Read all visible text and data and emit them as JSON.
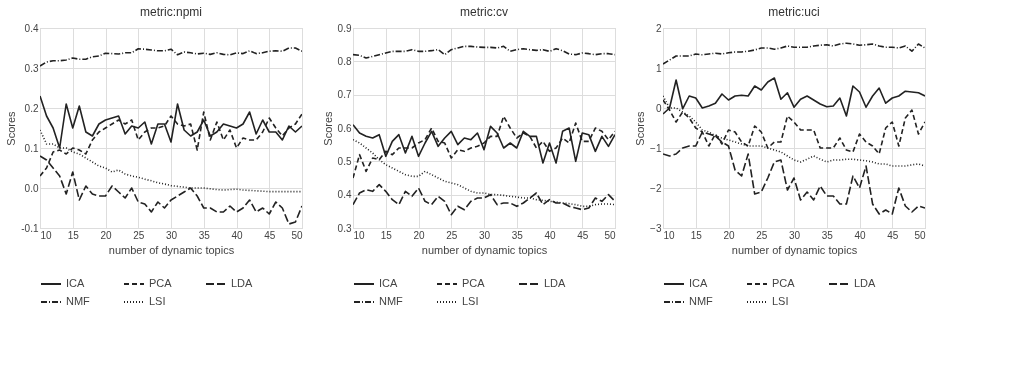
{
  "chart_data": [
    {
      "type": "line",
      "title": "metric:npmi",
      "xlabel": "number of dynamic topics",
      "ylabel": "Scores",
      "x": [
        10,
        11,
        12,
        13,
        14,
        15,
        16,
        17,
        18,
        19,
        20,
        21,
        22,
        23,
        24,
        25,
        26,
        27,
        28,
        29,
        30,
        31,
        32,
        33,
        34,
        35,
        36,
        37,
        38,
        39,
        40,
        41,
        42,
        43,
        44,
        45,
        46,
        47,
        48,
        49,
        50
      ],
      "xlim": [
        10,
        50
      ],
      "xticks": [
        10,
        15,
        20,
        25,
        30,
        35,
        40,
        45,
        50
      ],
      "ylim": [
        -0.1,
        0.4
      ],
      "yticks": [
        {
          "value": -0.1,
          "label": "-0.1"
        },
        {
          "value": 0,
          "label": "0.0"
        },
        0.1,
        0.2,
        0.3,
        0.4
      ],
      "grid": true,
      "legend": "bottom",
      "marker": "none",
      "series": [
        {
          "name": "ICA",
          "color": "#222222",
          "line_style": "solid",
          "values": [
            0.23,
            0.18,
            0.15,
            0.1,
            0.21,
            0.15,
            0.205,
            0.14,
            0.13,
            0.16,
            0.17,
            0.175,
            0.18,
            0.135,
            0.155,
            0.15,
            0.165,
            0.11,
            0.16,
            0.16,
            0.115,
            0.21,
            0.145,
            0.13,
            0.14,
            0.17,
            0.13,
            0.14,
            0.16,
            0.155,
            0.15,
            0.16,
            0.19,
            0.135,
            0.17,
            0.14,
            0.14,
            0.12,
            0.155,
            0.14,
            0.155
          ]
        },
        {
          "name": "PCA",
          "color": "#222222",
          "line_style": "dashed",
          "values": [
            0.03,
            0.05,
            0.09,
            0.095,
            0.085,
            0.1,
            0.095,
            0.085,
            0.12,
            0.14,
            0.15,
            0.16,
            0.17,
            0.16,
            0.17,
            0.12,
            0.14,
            0.15,
            0.15,
            0.155,
            0.18,
            0.16,
            0.155,
            0.16,
            0.095,
            0.19,
            0.12,
            0.165,
            0.12,
            0.145,
            0.1,
            0.125,
            0.12,
            0.12,
            0.14,
            0.175,
            0.15,
            0.13,
            0.15,
            0.16,
            0.185
          ]
        },
        {
          "name": "LDA",
          "color": "#222222",
          "line_style": "longdash",
          "values": [
            0.08,
            0.07,
            0.05,
            0.03,
            -0.015,
            0.04,
            -0.03,
            0.005,
            -0.015,
            -0.02,
            -0.02,
            0.005,
            -0.01,
            -0.025,
            0.0,
            -0.035,
            -0.04,
            -0.06,
            -0.035,
            -0.05,
            -0.03,
            -0.02,
            -0.01,
            0.0,
            -0.02,
            -0.05,
            -0.05,
            -0.06,
            -0.06,
            -0.045,
            -0.06,
            -0.05,
            -0.03,
            -0.06,
            -0.05,
            -0.065,
            -0.035,
            -0.05,
            -0.09,
            -0.085,
            -0.045
          ]
        },
        {
          "name": "NMF",
          "color": "#222222",
          "line_style": "dashdot",
          "values": [
            0.305,
            0.315,
            0.318,
            0.318,
            0.32,
            0.325,
            0.322,
            0.322,
            0.328,
            0.33,
            0.337,
            0.336,
            0.335,
            0.338,
            0.338,
            0.348,
            0.347,
            0.345,
            0.343,
            0.343,
            0.347,
            0.333,
            0.34,
            0.338,
            0.335,
            0.337,
            0.334,
            0.338,
            0.334,
            0.333,
            0.338,
            0.336,
            0.343,
            0.336,
            0.338,
            0.342,
            0.343,
            0.342,
            0.35,
            0.35,
            0.342
          ]
        },
        {
          "name": "LSI",
          "color": "#222222",
          "line_style": "dotted",
          "values": [
            0.145,
            0.11,
            0.11,
            0.1,
            0.1,
            0.09,
            0.085,
            0.075,
            0.065,
            0.055,
            0.05,
            0.04,
            0.045,
            0.035,
            0.03,
            0.027,
            0.022,
            0.018,
            0.013,
            0.01,
            0.006,
            0.004,
            0.002,
            0.0,
            0.0,
            0.0,
            -0.002,
            -0.004,
            -0.005,
            -0.004,
            -0.003,
            -0.005,
            -0.006,
            -0.007,
            -0.008,
            -0.009,
            -0.009,
            -0.009,
            -0.009,
            -0.009,
            -0.009
          ]
        }
      ]
    },
    {
      "type": "line",
      "title": "metric:cv",
      "xlabel": "number of dynamic topics",
      "ylabel": "Scores",
      "x": [
        10,
        11,
        12,
        13,
        14,
        15,
        16,
        17,
        18,
        19,
        20,
        21,
        22,
        23,
        24,
        25,
        26,
        27,
        28,
        29,
        30,
        31,
        32,
        33,
        34,
        35,
        36,
        37,
        38,
        39,
        40,
        41,
        42,
        43,
        44,
        45,
        46,
        47,
        48,
        49,
        50
      ],
      "xlim": [
        10,
        50
      ],
      "xticks": [
        10,
        15,
        20,
        25,
        30,
        35,
        40,
        45,
        50
      ],
      "ylim": [
        0.3,
        0.9
      ],
      "yticks": [
        0.3,
        0.4,
        0.5,
        0.6,
        0.7,
        0.8,
        0.9
      ],
      "grid": true,
      "legend": "bottom",
      "marker": "none",
      "series": [
        {
          "name": "ICA",
          "color": "#222222",
          "line_style": "solid",
          "values": [
            0.61,
            0.585,
            0.575,
            0.57,
            0.58,
            0.515,
            0.56,
            0.58,
            0.525,
            0.575,
            0.515,
            0.555,
            0.59,
            0.545,
            0.57,
            0.59,
            0.55,
            0.57,
            0.565,
            0.585,
            0.535,
            0.605,
            0.585,
            0.54,
            0.555,
            0.54,
            0.59,
            0.575,
            0.575,
            0.495,
            0.555,
            0.495,
            0.59,
            0.6,
            0.5,
            0.585,
            0.58,
            0.53,
            0.575,
            0.545,
            0.58
          ]
        },
        {
          "name": "PCA",
          "color": "#222222",
          "line_style": "dashed",
          "values": [
            0.45,
            0.52,
            0.47,
            0.51,
            0.505,
            0.53,
            0.52,
            0.54,
            0.54,
            0.54,
            0.555,
            0.565,
            0.6,
            0.56,
            0.555,
            0.51,
            0.535,
            0.53,
            0.54,
            0.545,
            0.555,
            0.575,
            0.575,
            0.635,
            0.6,
            0.57,
            0.585,
            0.575,
            0.54,
            0.56,
            0.53,
            0.54,
            0.57,
            0.555,
            0.615,
            0.56,
            0.56,
            0.6,
            0.59,
            0.565,
            0.59
          ]
        },
        {
          "name": "LDA",
          "color": "#222222",
          "line_style": "longdash",
          "values": [
            0.37,
            0.405,
            0.415,
            0.41,
            0.43,
            0.41,
            0.385,
            0.37,
            0.41,
            0.395,
            0.42,
            0.38,
            0.37,
            0.395,
            0.38,
            0.34,
            0.365,
            0.355,
            0.38,
            0.39,
            0.39,
            0.4,
            0.37,
            0.375,
            0.375,
            0.365,
            0.375,
            0.39,
            0.405,
            0.37,
            0.385,
            0.375,
            0.375,
            0.365,
            0.36,
            0.355,
            0.36,
            0.39,
            0.38,
            0.4,
            0.38
          ]
        },
        {
          "name": "NMF",
          "color": "#222222",
          "line_style": "dashdot",
          "values": [
            0.82,
            0.818,
            0.81,
            0.815,
            0.82,
            0.825,
            0.83,
            0.83,
            0.83,
            0.835,
            0.83,
            0.83,
            0.832,
            0.835,
            0.82,
            0.835,
            0.84,
            0.845,
            0.845,
            0.843,
            0.842,
            0.842,
            0.84,
            0.845,
            0.83,
            0.835,
            0.838,
            0.835,
            0.833,
            0.835,
            0.83,
            0.838,
            0.832,
            0.822,
            0.82,
            0.825,
            0.823,
            0.82,
            0.823,
            0.823,
            0.82
          ]
        },
        {
          "name": "LSI",
          "color": "#222222",
          "line_style": "dotted",
          "values": [
            0.565,
            0.555,
            0.54,
            0.525,
            0.505,
            0.49,
            0.48,
            0.47,
            0.46,
            0.455,
            0.455,
            0.47,
            0.46,
            0.45,
            0.44,
            0.435,
            0.43,
            0.42,
            0.41,
            0.405,
            0.405,
            0.4,
            0.4,
            0.398,
            0.395,
            0.393,
            0.39,
            0.39,
            0.385,
            0.383,
            0.38,
            0.378,
            0.375,
            0.373,
            0.37,
            0.365,
            0.365,
            0.37,
            0.372,
            0.372,
            0.37
          ]
        }
      ]
    },
    {
      "type": "line",
      "title": "metric:uci",
      "xlabel": "number of dynamic topics",
      "ylabel": "Scores",
      "x": [
        10,
        11,
        12,
        13,
        14,
        15,
        16,
        17,
        18,
        19,
        20,
        21,
        22,
        23,
        24,
        25,
        26,
        27,
        28,
        29,
        30,
        31,
        32,
        33,
        34,
        35,
        36,
        37,
        38,
        39,
        40,
        41,
        42,
        43,
        44,
        45,
        46,
        47,
        48,
        49,
        50
      ],
      "xlim": [
        10,
        50
      ],
      "xticks": [
        10,
        15,
        20,
        25,
        30,
        35,
        40,
        45,
        50
      ],
      "ylim": [
        -3,
        2
      ],
      "yticks": [
        -3,
        -2,
        -1,
        0,
        1,
        2
      ],
      "grid": true,
      "legend": "bottom",
      "marker": "none",
      "series": [
        {
          "name": "ICA",
          "color": "#222222",
          "line_style": "solid",
          "values": [
            -0.15,
            0.0,
            0.7,
            -0.02,
            0.3,
            0.25,
            0.0,
            0.05,
            0.12,
            0.35,
            0.2,
            0.3,
            0.32,
            0.3,
            0.55,
            0.45,
            0.65,
            0.75,
            0.22,
            0.38,
            0.02,
            0.22,
            0.3,
            0.2,
            0.1,
            0.03,
            0.05,
            0.25,
            -0.2,
            0.55,
            0.4,
            0.02,
            0.3,
            0.5,
            0.12,
            0.25,
            0.3,
            0.42,
            0.4,
            0.38,
            0.3
          ]
        },
        {
          "name": "PCA",
          "color": "#222222",
          "line_style": "dashed",
          "values": [
            0.2,
            -0.05,
            -0.35,
            -0.1,
            -0.25,
            -0.5,
            -0.6,
            -0.95,
            -0.65,
            -0.9,
            -0.55,
            -0.6,
            -0.85,
            -0.95,
            -0.45,
            -0.6,
            -1.0,
            -0.85,
            -0.85,
            -0.2,
            -0.35,
            -0.55,
            -0.55,
            -0.55,
            -1.0,
            -1.0,
            -1.0,
            -0.75,
            -1.05,
            -1.1,
            -0.65,
            -0.85,
            -0.95,
            -1.15,
            -0.5,
            -0.35,
            -0.95,
            -0.25,
            -0.05,
            -0.65,
            -0.35
          ]
        },
        {
          "name": "LDA",
          "color": "#222222",
          "line_style": "longdash",
          "values": [
            -1.15,
            -1.2,
            -1.15,
            -1.0,
            -0.95,
            -0.95,
            -0.6,
            -0.65,
            -0.7,
            -0.85,
            -0.95,
            -1.55,
            -1.7,
            -1.15,
            -2.15,
            -2.1,
            -1.75,
            -1.35,
            -1.3,
            -2.05,
            -1.75,
            -2.3,
            -2.1,
            -2.3,
            -1.95,
            -2.2,
            -2.2,
            -2.4,
            -2.4,
            -1.7,
            -2.0,
            -1.45,
            -2.4,
            -2.65,
            -2.55,
            -2.65,
            -2.0,
            -2.45,
            -2.6,
            -2.45,
            -2.5
          ]
        },
        {
          "name": "NMF",
          "color": "#222222",
          "line_style": "dashdot",
          "values": [
            1.1,
            1.2,
            1.3,
            1.3,
            1.3,
            1.35,
            1.33,
            1.35,
            1.37,
            1.35,
            1.38,
            1.4,
            1.4,
            1.42,
            1.45,
            1.5,
            1.5,
            1.47,
            1.5,
            1.55,
            1.52,
            1.52,
            1.52,
            1.55,
            1.57,
            1.58,
            1.55,
            1.6,
            1.62,
            1.6,
            1.57,
            1.58,
            1.6,
            1.55,
            1.52,
            1.52,
            1.5,
            1.55,
            1.42,
            1.6,
            1.5
          ]
        },
        {
          "name": "LSI",
          "color": "#222222",
          "line_style": "dotted",
          "values": [
            0.3,
            0.0,
            0.0,
            -0.1,
            -0.2,
            -0.35,
            -0.55,
            -0.6,
            -0.7,
            -0.75,
            -0.8,
            -0.85,
            -0.9,
            -0.95,
            -0.95,
            -0.95,
            -1.0,
            -1.05,
            -1.1,
            -1.2,
            -1.3,
            -1.35,
            -1.28,
            -1.2,
            -1.28,
            -1.35,
            -1.3,
            -1.3,
            -1.28,
            -1.28,
            -1.3,
            -1.32,
            -1.35,
            -1.4,
            -1.4,
            -1.45,
            -1.45,
            -1.45,
            -1.42,
            -1.4,
            -1.45
          ]
        }
      ]
    }
  ]
}
